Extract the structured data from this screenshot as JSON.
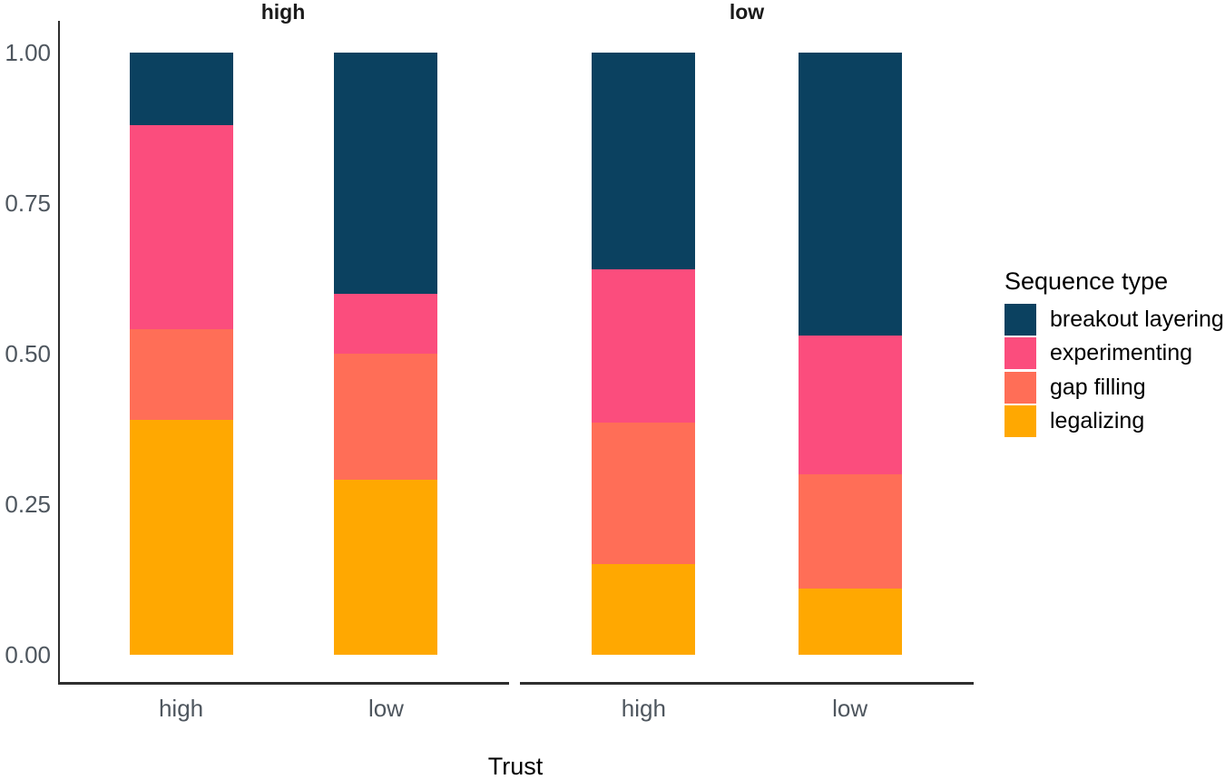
{
  "figure_title": "",
  "facets": {
    "left_label": "high",
    "right_label": "low"
  },
  "x_axis": {
    "title": "Trust"
  },
  "legend": {
    "title": "Sequence type"
  },
  "colors": {
    "breakout_layering": "#0B4160",
    "experimenting": "#FB4D7D",
    "gap_filling": "#FF6E57",
    "legalizing": "#FFA801",
    "axis_line": "#2e2e2e",
    "tick_text": "#4e565e",
    "strip_text": "#1a1a1a"
  },
  "chart_data": {
    "type": "bar",
    "variant": "stacked-normalized-100pct",
    "title": "",
    "xlabel": "Trust",
    "ylabel": "",
    "ylim": [
      0,
      1
    ],
    "grid": false,
    "legend_position": "right",
    "legend_title": "Sequence type",
    "facet_labels": [
      "high",
      "low"
    ],
    "bars": [
      {
        "facet": "high",
        "trust": "high"
      },
      {
        "facet": "high",
        "trust": "low"
      },
      {
        "facet": "low",
        "trust": "high"
      },
      {
        "facet": "low",
        "trust": "low"
      }
    ],
    "y_ticks": [
      {
        "label": "1.00",
        "value": 1.0
      },
      {
        "label": "0.75",
        "value": 0.75
      },
      {
        "label": "0.50",
        "value": 0.5
      },
      {
        "label": "0.25",
        "value": 0.25
      },
      {
        "label": "0.00",
        "value": 0.0
      }
    ],
    "series": [
      {
        "name": "breakout layering",
        "color": "#0B4160",
        "values": [
          0.12,
          0.4,
          0.36,
          0.47
        ]
      },
      {
        "name": "experimenting",
        "color": "#FB4D7D",
        "values": [
          0.34,
          0.1,
          0.255,
          0.23
        ]
      },
      {
        "name": "gap filling",
        "color": "#FF6E57",
        "values": [
          0.15,
          0.21,
          0.235,
          0.19
        ]
      },
      {
        "name": "legalizing",
        "color": "#FFA801",
        "values": [
          0.39,
          0.29,
          0.15,
          0.11
        ]
      }
    ],
    "stack_order_bottom_to_top": [
      "legalizing",
      "gap filling",
      "experimenting",
      "breakout layering"
    ]
  }
}
